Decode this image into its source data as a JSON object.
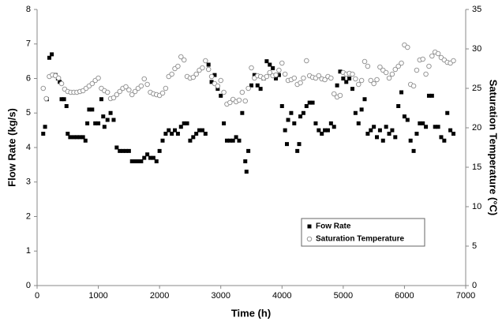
{
  "chart_data": {
    "type": "scatter",
    "x_label": "Time (h)",
    "y_label": "Flow Rate (kg/s)",
    "y2_label": "Saturation Temperature (°C)",
    "xlim": [
      0,
      7000
    ],
    "xticks": [
      0,
      1000,
      2000,
      3000,
      4000,
      5000,
      6000,
      7000
    ],
    "ylim": [
      0,
      8
    ],
    "yticks": [
      0,
      1,
      2,
      3,
      4,
      5,
      6,
      7,
      8
    ],
    "y2lim": [
      0,
      35
    ],
    "y2ticks": [
      0,
      5,
      10,
      15,
      20,
      25,
      30,
      35
    ],
    "grid": false,
    "legend": "lower right",
    "series": [
      {
        "name": "Fow Rate",
        "color": "#000000",
        "marker": "square",
        "filled": true,
        "axis": "y",
        "x": [
          100,
          130,
          160,
          200,
          240,
          270,
          300,
          340,
          370,
          400,
          440,
          480,
          500,
          540,
          600,
          650,
          700,
          750,
          790,
          820,
          850,
          900,
          950,
          1000,
          1050,
          1080,
          1100,
          1150,
          1200,
          1250,
          1300,
          1350,
          1400,
          1450,
          1500,
          1550,
          1600,
          1650,
          1700,
          1750,
          1800,
          1850,
          1900,
          1950,
          2000,
          2050,
          2100,
          2150,
          2200,
          2250,
          2300,
          2350,
          2400,
          2450,
          2500,
          2550,
          2600,
          2650,
          2700,
          2750,
          2800,
          2850,
          2900,
          2950,
          3000,
          3050,
          3100,
          3150,
          3200,
          3250,
          3300,
          3350,
          3400,
          3420,
          3450,
          3500,
          3550,
          3600,
          3650,
          3700,
          3750,
          3800,
          3850,
          3900,
          3950,
          4000,
          4050,
          4080,
          4100,
          4150,
          4200,
          4250,
          4280,
          4300,
          4350,
          4400,
          4450,
          4500,
          4550,
          4600,
          4650,
          4700,
          4750,
          4800,
          4850,
          4900,
          4950,
          5000,
          5050,
          5100,
          5150,
          5200,
          5250,
          5300,
          5350,
          5400,
          5450,
          5500,
          5550,
          5600,
          5650,
          5700,
          5750,
          5800,
          5850,
          5900,
          5950,
          6000,
          6050,
          6100,
          6150,
          6200,
          6250,
          6300,
          6350,
          6400,
          6450,
          6500,
          6550,
          6600,
          6650,
          6700,
          6750,
          6800
        ],
        "values": [
          4.4,
          4.6,
          5.4,
          6.6,
          6.7,
          6.1,
          6.1,
          6.0,
          5.9,
          5.4,
          5.4,
          5.2,
          4.4,
          4.3,
          4.3,
          4.3,
          4.3,
          4.3,
          4.2,
          4.7,
          5.1,
          5.1,
          4.7,
          4.7,
          5.4,
          4.9,
          4.6,
          4.8,
          5.0,
          4.8,
          4.0,
          3.9,
          3.9,
          3.9,
          3.9,
          3.6,
          3.6,
          3.6,
          3.6,
          3.7,
          3.8,
          3.7,
          3.7,
          3.6,
          3.9,
          4.2,
          4.4,
          4.5,
          4.4,
          4.5,
          4.4,
          4.6,
          4.7,
          4.7,
          4.2,
          4.3,
          4.4,
          4.5,
          4.5,
          4.4,
          6.4,
          5.9,
          6.1,
          5.7,
          5.5,
          4.7,
          4.2,
          4.2,
          4.2,
          4.3,
          4.2,
          5.0,
          3.6,
          3.3,
          3.9,
          5.8,
          6.1,
          5.8,
          5.7,
          6.0,
          6.5,
          6.4,
          6.3,
          6.0,
          6.1,
          5.2,
          4.5,
          4.1,
          4.8,
          5.0,
          4.7,
          3.9,
          4.1,
          4.9,
          5.0,
          5.2,
          5.3,
          5.3,
          4.7,
          4.5,
          4.4,
          4.5,
          4.5,
          4.7,
          4.6,
          5.8,
          6.2,
          6.0,
          5.9,
          6.0,
          5.7,
          5.0,
          4.7,
          5.1,
          5.4,
          4.4,
          4.5,
          4.6,
          4.3,
          4.5,
          4.2,
          4.6,
          4.4,
          4.5,
          4.3,
          5.2,
          5.6,
          4.9,
          4.8,
          4.2,
          3.9,
          4.4,
          4.7,
          4.7,
          4.6,
          5.5,
          5.5,
          4.6,
          4.6,
          4.3,
          4.2,
          5.0,
          4.5,
          4.4
        ]
      },
      {
        "name": "Saturation Temperature",
        "color": "#8c8c8c",
        "marker": "circle",
        "filled": false,
        "axis": "y2",
        "x": [
          100,
          150,
          200,
          250,
          300,
          350,
          400,
          450,
          500,
          550,
          600,
          650,
          700,
          750,
          800,
          850,
          900,
          950,
          1000,
          1050,
          1100,
          1150,
          1200,
          1250,
          1300,
          1350,
          1400,
          1450,
          1500,
          1550,
          1600,
          1650,
          1700,
          1750,
          1800,
          1850,
          1900,
          1950,
          2000,
          2050,
          2100,
          2150,
          2200,
          2250,
          2300,
          2350,
          2400,
          2450,
          2500,
          2550,
          2600,
          2650,
          2700,
          2750,
          2800,
          2850,
          2900,
          2950,
          3000,
          3050,
          3100,
          3150,
          3200,
          3250,
          3300,
          3350,
          3400,
          3450,
          3500,
          3550,
          3600,
          3650,
          3700,
          3750,
          3800,
          3850,
          3900,
          3950,
          4000,
          4050,
          4100,
          4150,
          4200,
          4250,
          4300,
          4350,
          4400,
          4450,
          4500,
          4550,
          4600,
          4650,
          4700,
          4750,
          4800,
          4850,
          4900,
          4950,
          5000,
          5050,
          5100,
          5150,
          5200,
          5250,
          5300,
          5350,
          5400,
          5450,
          5500,
          5550,
          5600,
          5650,
          5700,
          5750,
          5800,
          5850,
          5900,
          5950,
          6000,
          6050,
          6100,
          6150,
          6200,
          6250,
          6300,
          6350,
          6400,
          6450,
          6500,
          6550,
          6600,
          6650,
          6700,
          6750,
          6800
        ],
        "values": [
          25,
          23.7,
          26.5,
          26.7,
          26.6,
          26.3,
          25.6,
          24.9,
          24.6,
          24.5,
          24.5,
          24.5,
          24.6,
          24.7,
          25,
          25.3,
          25.6,
          26,
          26.3,
          25,
          24.7,
          24.5,
          23.7,
          23.8,
          24.2,
          24.6,
          25,
          25.2,
          24.8,
          24.2,
          24.6,
          25,
          25.3,
          26.2,
          25.5,
          24.5,
          24.3,
          24.2,
          24.1,
          24.4,
          25,
          26.5,
          26.8,
          27.5,
          27.8,
          29,
          28.6,
          26.5,
          26.3,
          26.4,
          26.8,
          27.3,
          27.6,
          28.5,
          27.4,
          26.5,
          25.6,
          25.3,
          26,
          24.5,
          23,
          23.2,
          23.6,
          23.3,
          23.5,
          24.5,
          23.4,
          25,
          27.6,
          26.3,
          26.6,
          26.5,
          26.3,
          26.5,
          27,
          26.6,
          26.7,
          27.3,
          28.2,
          26.8,
          26,
          26.1,
          26.3,
          25.5,
          25.7,
          26.3,
          28.5,
          26.6,
          26.4,
          26.3,
          26.6,
          26.2,
          26.1,
          26.5,
          26.3,
          24.3,
          23.9,
          24.1,
          27,
          26.8,
          26.9,
          26.8,
          26.2,
          25.5,
          26,
          28.4,
          27.8,
          26,
          25.6,
          26.1,
          27.7,
          27.3,
          27,
          26.3,
          26.8,
          27.4,
          27.8,
          28.2,
          30.5,
          30.2,
          25.5,
          25.3,
          27.3,
          28.6,
          28.7,
          26.8,
          27.8,
          29.1,
          29.6,
          29.4,
          28.9,
          28.6,
          28.3,
          28.2,
          28.5
        ]
      }
    ]
  }
}
